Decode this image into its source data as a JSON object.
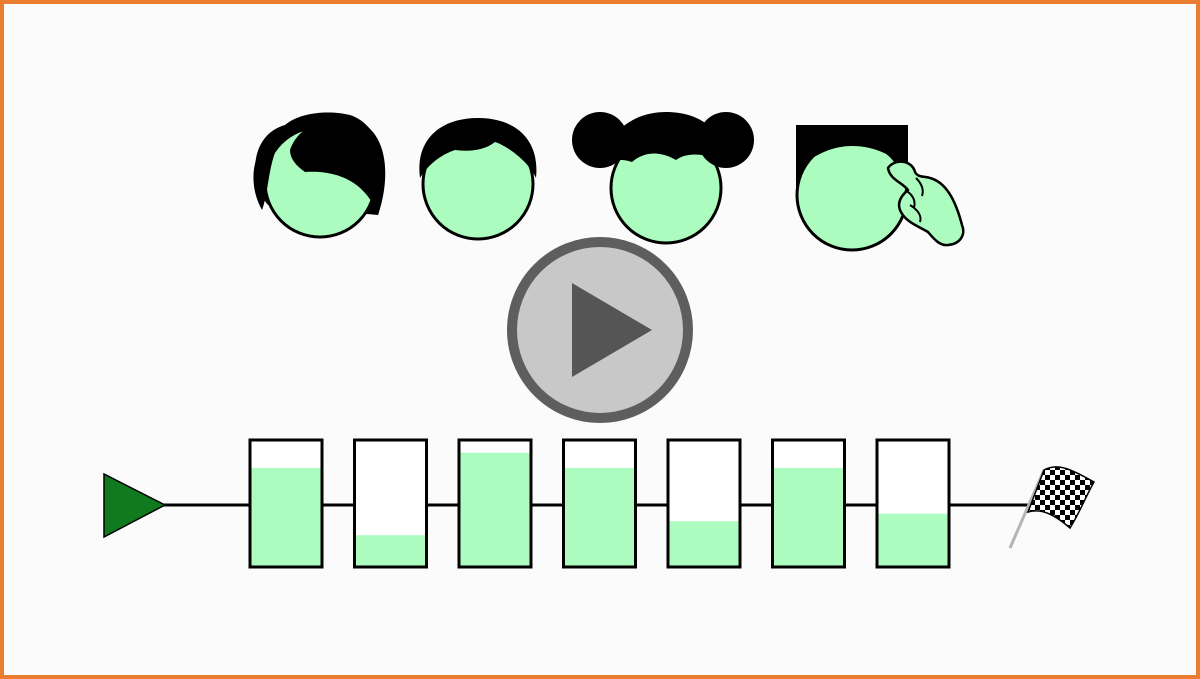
{
  "video": {
    "frame_color": "#ea7d2f",
    "background_color": "#fbfbfb",
    "skin_color": "#abfcbe",
    "hair_color": "#000000",
    "play_button": {
      "icon": "play-icon",
      "fill_color": "#c8c8c8",
      "ring_color": "#5e5e5e",
      "triangle_color": "#555555"
    },
    "characters": [
      {
        "name": "person-1",
        "hair_style": "side-swept"
      },
      {
        "name": "person-2",
        "hair_style": "short"
      },
      {
        "name": "person-3",
        "hair_style": "buns"
      },
      {
        "name": "person-4",
        "hair_style": "flat-top",
        "gesture": "thinking-hand"
      }
    ],
    "track": {
      "start_icon": "start-triangle-icon",
      "start_color": "#0f7a1e",
      "finish_icon": "checkered-flag-icon",
      "stages": [
        {
          "fill": 0.78
        },
        {
          "fill": 0.25
        },
        {
          "fill": 0.9
        },
        {
          "fill": 0.78
        },
        {
          "fill": 0.36
        },
        {
          "fill": 0.78
        },
        {
          "fill": 0.42
        }
      ]
    }
  }
}
